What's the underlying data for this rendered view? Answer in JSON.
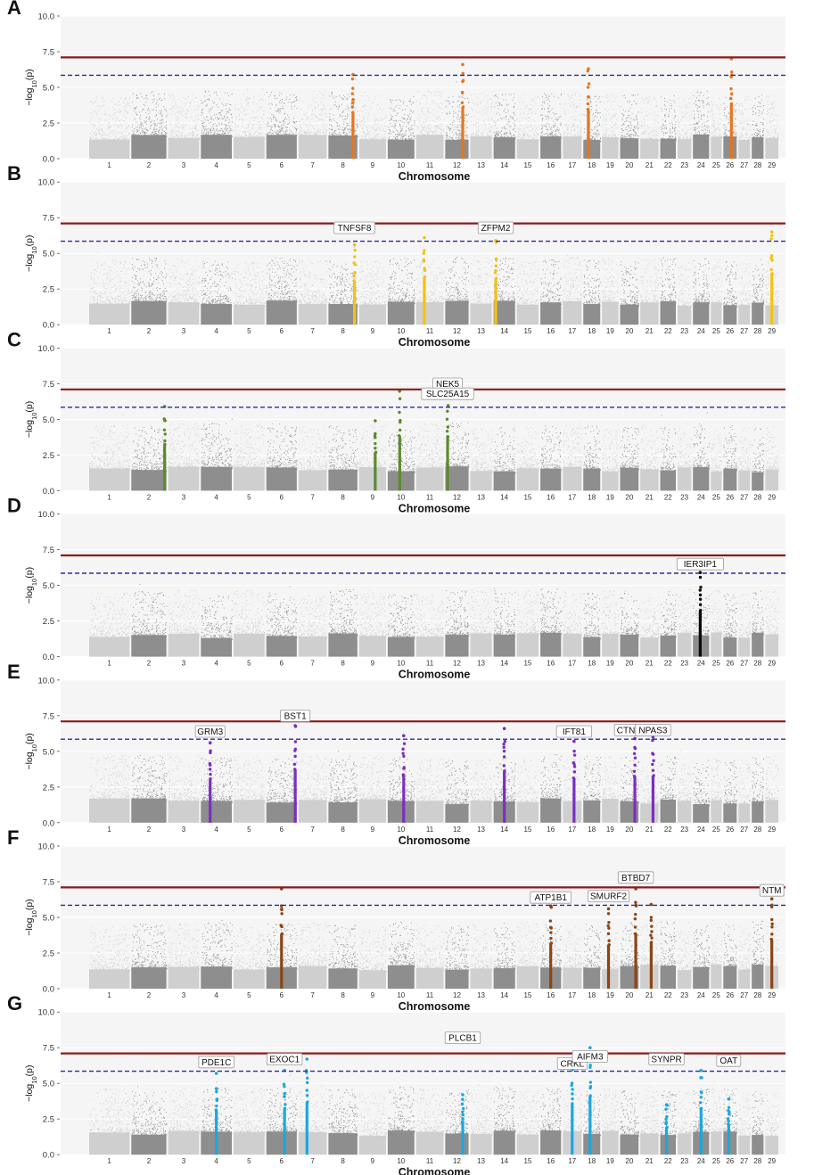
{
  "figure": {
    "xlabel": "Chromosome",
    "ylabel_prefix": "−log",
    "ylabel_sub": "10",
    "ylabel_suffix": "(p)",
    "background_color": "#f5f5f5",
    "chrom_color_light": "#cfcfcf",
    "chrom_color_dark": "#8e8e8e",
    "genomewide_threshold": 7.1,
    "suggestive_threshold": 5.85,
    "genomewide_color": "#8b1a1a",
    "suggestive_color": "#2b2b9e"
  },
  "chart_data": [
    {
      "type": "scatter",
      "panel": "A",
      "xlabel": "Chromosome",
      "ylabel": "−log10(p)",
      "ylim": [
        0,
        10
      ],
      "yticks": [
        "0.0",
        "2.5",
        "5.0",
        "7.5",
        "10.0"
      ],
      "chromosomes": [
        "1",
        "2",
        "3",
        "4",
        "5",
        "6",
        "7",
        "8",
        "9",
        "10",
        "11",
        "12",
        "13",
        "14",
        "15",
        "16",
        "17",
        "18",
        "19",
        "20",
        "21",
        "22",
        "23",
        "24",
        "25",
        "26",
        "27",
        "28",
        "29"
      ],
      "genomewide_threshold": 7.1,
      "suggestive_threshold": 5.85,
      "highlight_color": "#e8741c",
      "highlight_chromosomes": [
        "8",
        "12",
        "18",
        "26"
      ],
      "highlights": [
        {
          "chrom": "8",
          "pos": 0.85,
          "top": 5.9
        },
        {
          "chrom": "12",
          "pos": 0.75,
          "top": 6.6
        },
        {
          "chrom": "18",
          "pos": 0.3,
          "top": 6.3
        },
        {
          "chrom": "26",
          "pos": 0.6,
          "top": 7.0
        }
      ],
      "genes": []
    },
    {
      "type": "scatter",
      "panel": "B",
      "xlabel": "Chromosome",
      "ylabel": "−log10(p)",
      "ylim": [
        0,
        10
      ],
      "yticks": [
        "0.0",
        "2.5",
        "5.0",
        "7.5",
        "10.0"
      ],
      "chromosomes": [
        "1",
        "2",
        "3",
        "4",
        "5",
        "6",
        "7",
        "8",
        "9",
        "10",
        "11",
        "12",
        "13",
        "14",
        "15",
        "16",
        "17",
        "18",
        "19",
        "20",
        "21",
        "22",
        "23",
        "24",
        "25",
        "26",
        "27",
        "28",
        "29"
      ],
      "genomewide_threshold": 7.1,
      "suggestive_threshold": 5.85,
      "highlight_color": "#f2c215",
      "highlight_chromosomes": [
        "8",
        "11",
        "14",
        "29"
      ],
      "highlights": [
        {
          "chrom": "8",
          "pos": 0.9,
          "top": 5.6
        },
        {
          "chrom": "11",
          "pos": 0.3,
          "top": 6.1
        },
        {
          "chrom": "14",
          "pos": 0.1,
          "top": 5.9
        },
        {
          "chrom": "29",
          "pos": 0.5,
          "top": 6.5
        }
      ],
      "genes": [
        {
          "name": "TNFSF8",
          "chrom": "8",
          "pos": 0.9,
          "y": 6.2
        },
        {
          "name": "ZFPM2",
          "chrom": "14",
          "pos": 0.1,
          "y": 6.2
        }
      ]
    },
    {
      "type": "scatter",
      "panel": "C",
      "xlabel": "Chromosome",
      "ylabel": "−log10(p)",
      "ylim": [
        0,
        10
      ],
      "yticks": [
        "0.0",
        "2.5",
        "5.0",
        "7.5",
        "10.0"
      ],
      "chromosomes": [
        "1",
        "2",
        "3",
        "4",
        "5",
        "6",
        "7",
        "8",
        "9",
        "10",
        "11",
        "12",
        "13",
        "14",
        "15",
        "16",
        "17",
        "18",
        "19",
        "20",
        "21",
        "22",
        "23",
        "24",
        "25",
        "26",
        "27",
        "28",
        "29"
      ],
      "genomewide_threshold": 7.1,
      "suggestive_threshold": 5.85,
      "highlight_color": "#5c8a2e",
      "highlight_chromosomes": [
        "2",
        "9",
        "10",
        "12"
      ],
      "highlights": [
        {
          "chrom": "2",
          "pos": 0.95,
          "top": 5.9
        },
        {
          "chrom": "9",
          "pos": 0.6,
          "top": 4.9
        },
        {
          "chrom": "10",
          "pos": 0.45,
          "top": 7.0
        },
        {
          "chrom": "12",
          "pos": 0.1,
          "top": 6.9
        }
      ],
      "genes": [
        {
          "name": "NEK5",
          "chrom": "12",
          "pos": 0.1,
          "y": 6.9
        },
        {
          "name": "SLC25A15",
          "chrom": "12",
          "pos": 0.1,
          "y": 6.2
        }
      ]
    },
    {
      "type": "scatter",
      "panel": "D",
      "xlabel": "Chromosome",
      "ylabel": "−log10(p)",
      "ylim": [
        0,
        10
      ],
      "yticks": [
        "0.0",
        "2.5",
        "5.0",
        "7.5",
        "10.0"
      ],
      "chromosomes": [
        "1",
        "2",
        "3",
        "4",
        "5",
        "6",
        "7",
        "8",
        "9",
        "10",
        "11",
        "12",
        "13",
        "14",
        "15",
        "16",
        "17",
        "18",
        "19",
        "20",
        "21",
        "22",
        "23",
        "24",
        "25",
        "26",
        "27",
        "28",
        "29"
      ],
      "genomewide_threshold": 7.1,
      "suggestive_threshold": 5.85,
      "highlight_color": "#0a0a0a",
      "highlight_chromosomes": [
        "24"
      ],
      "highlights": [
        {
          "chrom": "24",
          "pos": 0.45,
          "top": 5.9
        }
      ],
      "genes": [
        {
          "name": "IER3IP1",
          "chrom": "24",
          "pos": 0.45,
          "y": 5.9
        }
      ]
    },
    {
      "type": "scatter",
      "panel": "E",
      "xlabel": "Chromosome",
      "ylabel": "−log10(p)",
      "ylim": [
        0,
        10
      ],
      "yticks": [
        "0.0",
        "2.5",
        "5.0",
        "7.5",
        "10.0"
      ],
      "chromosomes": [
        "1",
        "2",
        "3",
        "4",
        "5",
        "6",
        "7",
        "8",
        "9",
        "10",
        "11",
        "12",
        "13",
        "14",
        "15",
        "16",
        "17",
        "18",
        "19",
        "20",
        "21",
        "22",
        "23",
        "24",
        "25",
        "26",
        "27",
        "28",
        "29"
      ],
      "genomewide_threshold": 7.1,
      "suggestive_threshold": 5.85,
      "highlight_color": "#7b2fbe",
      "highlight_chromosomes": [
        "4",
        "6",
        "10",
        "14",
        "17",
        "20",
        "21"
      ],
      "highlights": [
        {
          "chrom": "4",
          "pos": 0.3,
          "top": 5.6
        },
        {
          "chrom": "6",
          "pos": 0.95,
          "top": 6.8
        },
        {
          "chrom": "10",
          "pos": 0.6,
          "top": 6.1
        },
        {
          "chrom": "14",
          "pos": 0.5,
          "top": 6.6
        },
        {
          "chrom": "17",
          "pos": 0.6,
          "top": 5.7
        },
        {
          "chrom": "20",
          "pos": 0.8,
          "top": 5.9
        },
        {
          "chrom": "21",
          "pos": 0.7,
          "top": 6.0
        }
      ],
      "genes": [
        {
          "name": "GRM3",
          "chrom": "4",
          "pos": 0.3,
          "y": 5.8
        },
        {
          "name": "BST1",
          "chrom": "6",
          "pos": 0.95,
          "y": 6.9
        },
        {
          "name": "IFT81",
          "chrom": "17",
          "pos": 0.6,
          "y": 5.8
        },
        {
          "name": "CTNND2",
          "chrom": "20",
          "pos": 0.8,
          "y": 5.9
        },
        {
          "name": "NPAS3",
          "chrom": "21",
          "pos": 0.7,
          "y": 5.9
        }
      ]
    },
    {
      "type": "scatter",
      "panel": "F",
      "xlabel": "Chromosome",
      "ylabel": "−log10(p)",
      "ylim": [
        0,
        10
      ],
      "yticks": [
        "0.0",
        "2.5",
        "5.0",
        "7.5",
        "10.0"
      ],
      "chromosomes": [
        "1",
        "2",
        "3",
        "4",
        "5",
        "6",
        "7",
        "8",
        "9",
        "10",
        "11",
        "12",
        "13",
        "14",
        "15",
        "16",
        "17",
        "18",
        "19",
        "20",
        "21",
        "22",
        "23",
        "24",
        "25",
        "26",
        "27",
        "28",
        "29"
      ],
      "genomewide_threshold": 7.1,
      "suggestive_threshold": 5.85,
      "highlight_color": "#8b4513",
      "highlight_chromosomes": [
        "6",
        "16",
        "19",
        "20",
        "21",
        "29"
      ],
      "highlights": [
        {
          "chrom": "6",
          "pos": 0.5,
          "top": 7.0
        },
        {
          "chrom": "16",
          "pos": 0.5,
          "top": 5.8
        },
        {
          "chrom": "19",
          "pos": 0.4,
          "top": 5.6
        },
        {
          "chrom": "20",
          "pos": 0.85,
          "top": 7.0
        },
        {
          "chrom": "21",
          "pos": 0.6,
          "top": 5.9
        },
        {
          "chrom": "29",
          "pos": 0.5,
          "top": 6.3
        }
      ],
      "genes": [
        {
          "name": "BTBD7",
          "chrom": "20",
          "pos": 0.85,
          "y": 7.2
        },
        {
          "name": "ATP1B1",
          "chrom": "16",
          "pos": 0.5,
          "y": 5.8
        },
        {
          "name": "SMURF2",
          "chrom": "19",
          "pos": 0.4,
          "y": 5.9
        },
        {
          "name": "NTM",
          "chrom": "29",
          "pos": 0.5,
          "y": 6.3
        }
      ]
    },
    {
      "type": "scatter",
      "panel": "G",
      "xlabel": "Chromosome",
      "ylabel": "−log10(p)",
      "ylim": [
        0,
        10
      ],
      "yticks": [
        "0.0",
        "2.5",
        "5.0",
        "7.5",
        "10.0"
      ],
      "chromosomes": [
        "1",
        "2",
        "3",
        "4",
        "5",
        "6",
        "7",
        "8",
        "9",
        "10",
        "11",
        "12",
        "13",
        "14",
        "15",
        "16",
        "17",
        "18",
        "19",
        "20",
        "21",
        "22",
        "23",
        "24",
        "25",
        "26",
        "27",
        "28",
        "29"
      ],
      "genomewide_threshold": 7.1,
      "suggestive_threshold": 5.85,
      "highlight_color": "#1aa7e0",
      "highlight_chromosomes": [
        "4",
        "6",
        "7",
        "12",
        "17",
        "18",
        "22",
        "24",
        "26"
      ],
      "highlights": [
        {
          "chrom": "4",
          "pos": 0.5,
          "top": 5.7
        },
        {
          "chrom": "6",
          "pos": 0.6,
          "top": 5.9
        },
        {
          "chrom": "7",
          "pos": 0.3,
          "top": 6.7
        },
        {
          "chrom": "12",
          "pos": 0.75,
          "top": 4.2
        },
        {
          "chrom": "17",
          "pos": 0.5,
          "top": 6.5
        },
        {
          "chrom": "18",
          "pos": 0.4,
          "top": 7.5
        },
        {
          "chrom": "22",
          "pos": 0.4,
          "top": 3.5
        },
        {
          "chrom": "24",
          "pos": 0.5,
          "top": 5.9
        },
        {
          "chrom": "26",
          "pos": 0.4,
          "top": 3.9
        }
      ],
      "genes": [
        {
          "name": "PLCB1",
          "chrom": "12",
          "pos": 0.75,
          "y": 7.6
        },
        {
          "name": "PDE1C",
          "chrom": "4",
          "pos": 0.5,
          "y": 5.9
        },
        {
          "name": "EXOC1",
          "chrom": "6",
          "pos": 0.6,
          "y": 6.1
        },
        {
          "name": "CRKL",
          "chrom": "17",
          "pos": 0.5,
          "y": 5.8
        },
        {
          "name": "AIFM3",
          "chrom": "18",
          "pos": 0.4,
          "y": 6.3
        },
        {
          "name": "SYNPR",
          "chrom": "22",
          "pos": 0.4,
          "y": 6.1
        },
        {
          "name": "OAT",
          "chrom": "26",
          "pos": 0.4,
          "y": 6.0
        }
      ]
    }
  ]
}
